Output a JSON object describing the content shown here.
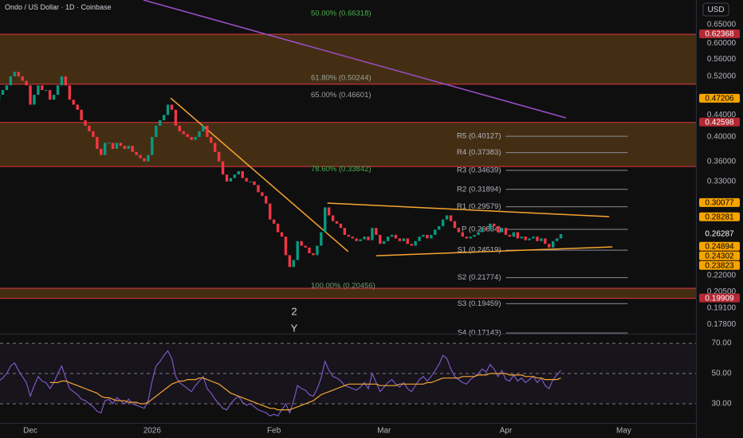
{
  "header": {
    "title": "Ondo / US Dollar · 1D · Coinbase",
    "currency": "USD"
  },
  "annotations": [
    "2",
    "Y"
  ],
  "chart_data": [
    {
      "type": "candlestick",
      "log_scale": true,
      "up_color": "#089981",
      "down_color": "#f23645",
      "categories": [
        null,
        null,
        null,
        null,
        null,
        null,
        null,
        null,
        "Dec",
        null,
        null,
        null,
        null,
        null,
        null,
        null,
        null,
        null,
        null,
        null,
        null,
        null,
        null,
        null,
        null,
        null,
        null,
        null,
        null,
        null,
        null,
        null,
        null,
        null,
        null,
        null,
        null,
        null,
        null,
        "2026",
        null,
        null,
        null,
        null,
        null,
        null,
        null,
        null,
        null,
        null,
        null,
        null,
        null,
        null,
        null,
        null,
        null,
        null,
        null,
        null,
        null,
        null,
        null,
        null,
        null,
        null,
        null,
        null,
        null,
        null,
        "Feb",
        null,
        null,
        null,
        null,
        null,
        null,
        null,
        null,
        null,
        null,
        null,
        null,
        null,
        null,
        null,
        null,
        null,
        null,
        null,
        null,
        null,
        null,
        null,
        null,
        null,
        null,
        null,
        "Mar",
        null,
        null,
        null,
        null,
        null,
        null,
        null,
        null,
        null,
        null,
        null,
        null,
        null,
        null,
        null,
        null,
        null,
        null,
        null,
        null,
        null,
        null,
        null,
        null,
        null,
        null,
        null,
        null,
        null,
        null,
        "Apr",
        null,
        null,
        null,
        null,
        null,
        null,
        null,
        null,
        null,
        null,
        null,
        null,
        null,
        null,
        null,
        null,
        null,
        null,
        null,
        null,
        null,
        null,
        null,
        null,
        null,
        null,
        null,
        null,
        null,
        "May",
        null,
        null,
        null,
        null,
        null,
        null,
        null,
        null,
        null,
        null,
        null,
        null,
        null,
        null,
        null,
        null,
        null,
        null
      ],
      "open": [
        0.47,
        0.48,
        0.49,
        0.5,
        0.52,
        0.53,
        0.52,
        0.51,
        0.5,
        0.46,
        0.48,
        0.5,
        0.49,
        0.49,
        0.47,
        0.48,
        0.5,
        0.52,
        0.5,
        0.47,
        0.46,
        0.45,
        0.43,
        0.42,
        0.41,
        0.4,
        0.38,
        0.37,
        0.39,
        0.39,
        0.38,
        0.39,
        0.385,
        0.38,
        0.385,
        0.375,
        0.37,
        0.365,
        0.36,
        0.37,
        0.4,
        0.42,
        0.43,
        0.44,
        0.46,
        0.45,
        0.42,
        0.41,
        0.405,
        0.4,
        0.395,
        0.4,
        0.41,
        0.42,
        0.4,
        0.39,
        0.375,
        0.36,
        0.34,
        0.33,
        0.335,
        0.34,
        0.345,
        0.335,
        0.33,
        0.33,
        0.325,
        0.315,
        0.31,
        0.3,
        0.28,
        0.275,
        0.265,
        0.26,
        0.24,
        0.228,
        0.235,
        0.255,
        0.25,
        0.248,
        0.242,
        0.24,
        0.25,
        0.265,
        0.295,
        0.285,
        0.278,
        0.275,
        0.27,
        0.262,
        0.26,
        0.258,
        0.255,
        0.257,
        0.26,
        0.256,
        0.27,
        0.262,
        0.252,
        0.255,
        0.26,
        0.262,
        0.258,
        0.255,
        0.258,
        0.252,
        0.25,
        0.255,
        0.26,
        0.262,
        0.258,
        0.262,
        0.268,
        0.272,
        0.28,
        0.285,
        0.278,
        0.27,
        0.265,
        0.26,
        0.258,
        0.26,
        0.262,
        0.265,
        0.27,
        0.268,
        0.275,
        0.272,
        0.265,
        0.27,
        0.262,
        0.26,
        0.265,
        0.258,
        0.26,
        0.256,
        0.258,
        0.26,
        0.255,
        0.258,
        0.252,
        0.248,
        0.255,
        0.258,
        null,
        null,
        null,
        null,
        null,
        null,
        null,
        null,
        null,
        null,
        null,
        null,
        null,
        null,
        null,
        null,
        null,
        null,
        null,
        null,
        null,
        null,
        null,
        null,
        null,
        null,
        null,
        null,
        null,
        null,
        null,
        null,
        null,
        null
      ],
      "close": [
        0.48,
        0.49,
        0.5,
        0.52,
        0.53,
        0.52,
        0.51,
        0.5,
        0.46,
        0.48,
        0.5,
        0.49,
        0.49,
        0.47,
        0.48,
        0.5,
        0.52,
        0.5,
        0.47,
        0.46,
        0.45,
        0.43,
        0.42,
        0.41,
        0.4,
        0.38,
        0.37,
        0.39,
        0.39,
        0.38,
        0.39,
        0.385,
        0.38,
        0.385,
        0.375,
        0.37,
        0.365,
        0.36,
        0.37,
        0.4,
        0.42,
        0.43,
        0.44,
        0.46,
        0.45,
        0.42,
        0.41,
        0.405,
        0.4,
        0.395,
        0.4,
        0.41,
        0.42,
        0.4,
        0.39,
        0.375,
        0.36,
        0.34,
        0.33,
        0.335,
        0.34,
        0.345,
        0.335,
        0.33,
        0.33,
        0.325,
        0.315,
        0.31,
        0.3,
        0.28,
        0.275,
        0.265,
        0.26,
        0.24,
        0.228,
        0.235,
        0.255,
        0.25,
        0.248,
        0.242,
        0.24,
        0.25,
        0.265,
        0.295,
        0.285,
        0.278,
        0.275,
        0.27,
        0.262,
        0.26,
        0.258,
        0.255,
        0.257,
        0.26,
        0.256,
        0.27,
        0.262,
        0.252,
        0.255,
        0.26,
        0.262,
        0.258,
        0.255,
        0.258,
        0.252,
        0.25,
        0.255,
        0.26,
        0.262,
        0.258,
        0.262,
        0.268,
        0.272,
        0.28,
        0.285,
        0.278,
        0.27,
        0.265,
        0.26,
        0.258,
        0.26,
        0.262,
        0.265,
        0.27,
        0.268,
        0.275,
        0.272,
        0.265,
        0.27,
        0.262,
        0.26,
        0.265,
        0.258,
        0.26,
        0.256,
        0.258,
        0.26,
        0.255,
        0.258,
        0.252,
        0.248,
        0.255,
        0.258,
        0.26287,
        null,
        null,
        null,
        null,
        null,
        null,
        null,
        null,
        null,
        null,
        null,
        null,
        null,
        null,
        null,
        null,
        null,
        null,
        null,
        null,
        null,
        null,
        null,
        null,
        null,
        null,
        null,
        null,
        null,
        null,
        null,
        null,
        null,
        null
      ],
      "ylim": [
        0.1715,
        0.7232
      ],
      "yticks": [
        {
          "value": 0.65,
          "label": "0.65000"
        },
        {
          "value": 0.6,
          "label": "0.60000"
        },
        {
          "value": 0.56,
          "label": "0.56000"
        },
        {
          "value": 0.52,
          "label": "0.52000"
        },
        {
          "value": 0.44,
          "label": "0.44000"
        },
        {
          "value": 0.4,
          "label": "0.40000"
        },
        {
          "value": 0.36,
          "label": "0.36000"
        },
        {
          "value": 0.33,
          "label": "0.33000"
        },
        {
          "value": 0.22,
          "label": "0.22000"
        },
        {
          "value": 0.205,
          "label": "0.20500"
        },
        {
          "value": 0.191,
          "label": "0.19100"
        },
        {
          "value": 0.178,
          "label": "0.17800"
        }
      ],
      "price_tags": [
        {
          "value": 0.62368,
          "color": "#b22833",
          "text_color": "#ffffff"
        },
        {
          "value": 0.47206,
          "color": "#f7a400",
          "text_color": "#000000"
        },
        {
          "value": 0.42598,
          "color": "#b22833",
          "text_color": "#ffffff"
        },
        {
          "value": 0.30077,
          "color": "#f7a400",
          "text_color": "#000000"
        },
        {
          "value": 0.28281,
          "color": "#f7a400",
          "text_color": "#000000"
        },
        {
          "value": 0.26287,
          "color": "#0f0f0f",
          "text_color": "#ffffff"
        },
        {
          "value": 0.24894,
          "color": "#f7a400",
          "text_color": "#000000"
        },
        {
          "value": 0.24302,
          "color": "#f7a400",
          "text_color": "#000000"
        },
        {
          "value": 0.23823,
          "color": "#f7a400",
          "text_color": "#000000"
        },
        {
          "value": 0.19909,
          "color": "#b22833",
          "text_color": "#ffffff"
        }
      ],
      "zones": [
        {
          "top": 0.62368,
          "bottom": 0.50244
        },
        {
          "top": 0.42598,
          "bottom": 0.352
        },
        {
          "top": 0.208,
          "bottom": 0.19909
        }
      ],
      "zone_color": "#4a3214",
      "zone_border": "#e0353f",
      "fib_levels": [
        {
          "text": "50.00% (0.66318)",
          "value": 0.66318,
          "color": "#4caf50"
        },
        {
          "text": "61.80% (0.50244)",
          "value": 0.50244,
          "color": "#9aa39a"
        },
        {
          "text": "65.00% (0.46601)",
          "value": 0.46601,
          "color": "#9aa39a"
        },
        {
          "text": "78.60% (0.33842)",
          "value": 0.33842,
          "color": "#4caf50"
        },
        {
          "text": "100.00% (0.20456)",
          "value": 0.20456,
          "color": "#6f9a6f"
        }
      ],
      "pivots": [
        {
          "text": "R5 (0.40127)",
          "value": 0.40127
        },
        {
          "text": "R4 (0.37383)",
          "value": 0.37383
        },
        {
          "text": "R3 (0.34639)",
          "value": 0.34639
        },
        {
          "text": "R2 (0.31894)",
          "value": 0.31894
        },
        {
          "text": "R1 (0.29579)",
          "value": 0.29579
        },
        {
          "text": "P (0.26834)",
          "value": 0.26834
        },
        {
          "text": "S1 (0.24519)",
          "value": 0.24519
        },
        {
          "text": "S2 (0.21774)",
          "value": 0.21774
        },
        {
          "text": "S3 (0.19459)",
          "value": 0.19459
        },
        {
          "text": "S4 (0.17143)",
          "value": 0.17143
        }
      ],
      "pivot_color": "#8a8d96",
      "pivot_range": [
        129,
        160
      ],
      "trendlines": [
        {
          "points": [
            [
              36.8,
              0.7232
            ],
            [
              144.3,
              0.4345
            ]
          ],
          "color": "#9c4fc9"
        },
        {
          "points": [
            [
              43.7,
              0.4735
            ],
            [
              88.9,
              0.2437
            ]
          ],
          "color": "#f7a531"
        },
        {
          "points": [
            [
              83.6,
              0.3006
            ],
            [
              155.3,
              0.2834
            ]
          ],
          "color": "#f7a531"
        },
        {
          "points": [
            [
              96,
              0.2394
            ],
            [
              156.1,
              0.2487
            ]
          ],
          "color": "#f7a531"
        }
      ]
    },
    {
      "type": "line",
      "series": [
        {
          "color": "#7e57c2",
          "values": [
            45,
            47,
            50,
            55,
            57,
            52,
            48,
            44,
            35,
            42,
            48,
            45,
            44,
            40,
            44,
            50,
            55,
            47,
            40,
            38,
            36,
            33,
            32,
            30,
            28,
            25,
            24,
            32,
            33,
            30,
            34,
            32,
            30,
            33,
            30,
            29,
            28,
            27,
            32,
            45,
            55,
            58,
            62,
            65,
            60,
            48,
            44,
            42,
            40,
            38,
            42,
            45,
            48,
            40,
            37,
            33,
            30,
            27,
            26,
            30,
            33,
            35,
            31,
            29,
            30,
            28,
            26,
            25,
            24,
            22,
            23,
            22,
            26,
            30,
            24,
            32,
            42,
            40,
            39,
            36,
            35,
            40,
            47,
            58,
            52,
            48,
            47,
            45,
            42,
            41,
            40,
            39,
            41,
            44,
            40,
            50,
            44,
            38,
            41,
            44,
            46,
            43,
            41,
            44,
            40,
            38,
            42,
            46,
            48,
            45,
            48,
            52,
            56,
            62,
            60,
            53,
            48,
            46,
            44,
            43,
            46,
            48,
            50,
            53,
            51,
            56,
            53,
            48,
            52,
            46,
            45,
            49,
            45,
            47,
            44,
            46,
            48,
            44,
            47,
            42,
            40,
            46,
            49,
            52,
            null,
            null,
            null,
            null,
            null,
            null,
            null,
            null,
            null,
            null,
            null,
            null,
            null,
            null,
            null,
            null,
            null,
            null,
            null,
            null,
            null,
            null,
            null,
            null,
            null,
            null,
            null,
            null,
            null,
            null,
            null,
            null,
            null,
            null
          ]
        },
        {
          "color": "#f7a531",
          "values": [
            null,
            null,
            null,
            null,
            null,
            null,
            null,
            null,
            null,
            null,
            null,
            null,
            null,
            44,
            44,
            44,
            45,
            45,
            44,
            43,
            42,
            41,
            40,
            39,
            38,
            37,
            35,
            34,
            34,
            33,
            32,
            32,
            32,
            31,
            31,
            31,
            30,
            30,
            31,
            33,
            35,
            37,
            39,
            41,
            43,
            44,
            45,
            45,
            46,
            46,
            46,
            47,
            47,
            46,
            45,
            44,
            43,
            41,
            39,
            37,
            36,
            35,
            34,
            33,
            32,
            31,
            30,
            29,
            28,
            27,
            27,
            26,
            26,
            26,
            26,
            27,
            28,
            29,
            30,
            31,
            32,
            34,
            36,
            37,
            38,
            39,
            40,
            41,
            42,
            43,
            43,
            43,
            43,
            43,
            43,
            43,
            43,
            42,
            42,
            42,
            42,
            42,
            43,
            43,
            43,
            43,
            43,
            43,
            43,
            44,
            44,
            45,
            46,
            47,
            47,
            47,
            47,
            47,
            48,
            48,
            48,
            48,
            49,
            49,
            49,
            50,
            50,
            50,
            50,
            50,
            49,
            49,
            49,
            49,
            48,
            48,
            48,
            47,
            47,
            46,
            46,
            46,
            46,
            47,
            null,
            null,
            null,
            null,
            null,
            null,
            null,
            null,
            null,
            null,
            null,
            null,
            null,
            null,
            null,
            null,
            null,
            null,
            null,
            null,
            null,
            null,
            null,
            null,
            null,
            null,
            null,
            null,
            null,
            null,
            null,
            null,
            null,
            null
          ]
        }
      ],
      "ylim": [
        17.9,
        75.3
      ],
      "yticks": [
        {
          "value": 70,
          "label": "70.00"
        },
        {
          "value": 50,
          "label": "50.00"
        },
        {
          "value": 30,
          "label": "30.00"
        }
      ],
      "band": [
        30,
        70
      ],
      "band_color": "#7e57c2"
    }
  ]
}
